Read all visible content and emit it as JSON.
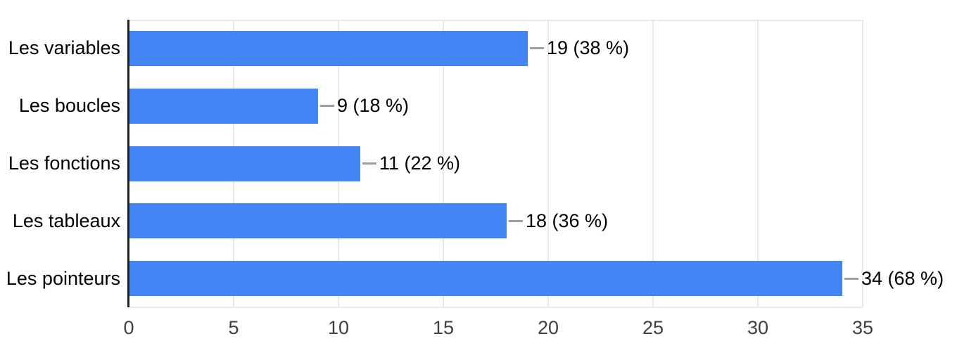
{
  "chart_data": {
    "type": "bar",
    "orientation": "horizontal",
    "title": "",
    "xlabel": "",
    "ylabel": "",
    "categories": [
      "Les variables",
      "Les boucles",
      "Les fonctions",
      "Les tableaux",
      "Les pointeurs"
    ],
    "values": [
      19,
      9,
      11,
      18,
      34
    ],
    "percentages": [
      38,
      18,
      22,
      36,
      68
    ],
    "value_labels": [
      "19 (38 %)",
      "9 (18 %)",
      "11 (22 %)",
      "18 (36 %)",
      "34 (68 %)"
    ],
    "x_ticks": [
      0,
      5,
      10,
      15,
      20,
      25,
      30,
      35
    ],
    "xlim": [
      0,
      35
    ],
    "grid": true,
    "legend": "none",
    "colors": {
      "bar": "#4285f4",
      "gridline": "#e9e9e9",
      "axis_line": "#212121",
      "connector": "#9e9e9e",
      "category_text": "#000000",
      "value_text": "#000000",
      "tick_text": "#404040",
      "background": "#ffffff"
    }
  }
}
